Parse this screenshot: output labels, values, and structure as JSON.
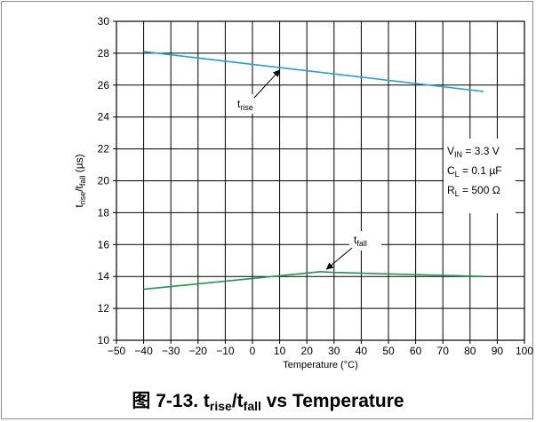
{
  "chart_data": {
    "type": "line",
    "title": "",
    "xlabel": "Temperature (°C)",
    "ylabel": {
      "base": "t",
      "sub1": "rise",
      "slash": "/t",
      "sub2": "fall",
      "unit": " (µs)"
    },
    "xlim": [
      -50,
      100
    ],
    "ylim": [
      10,
      30
    ],
    "xticks": [
      -50,
      -40,
      -30,
      -20,
      -10,
      0,
      10,
      20,
      30,
      40,
      50,
      60,
      70,
      80,
      90,
      100
    ],
    "yticks": [
      10,
      12,
      14,
      16,
      18,
      20,
      22,
      24,
      26,
      28,
      30
    ],
    "grid": true,
    "series": [
      {
        "name": "t_rise",
        "label_base": "t",
        "label_sub": "rise",
        "color": "#1ea0dc",
        "x": [
          -40,
          85
        ],
        "y": [
          28.1,
          25.6
        ]
      },
      {
        "name": "t_fall",
        "label_base": "t",
        "label_sub": "fall",
        "color": "#1a9a4e",
        "x": [
          -40,
          25,
          30,
          85
        ],
        "y": [
          13.2,
          14.3,
          14.25,
          14.0
        ]
      }
    ],
    "conditions": [
      {
        "base": "V",
        "sub": "IN",
        "rest": " = 3.3 V"
      },
      {
        "base": "C",
        "sub": "L",
        "rest": " = 0.1 µF"
      },
      {
        "base": "R",
        "sub": "L",
        "rest": " = 500 Ω"
      }
    ]
  },
  "caption": {
    "prefix": "图 7-13. t",
    "sub1": "rise",
    "mid": "/t",
    "sub2": "fall",
    "suffix": " vs Temperature"
  }
}
